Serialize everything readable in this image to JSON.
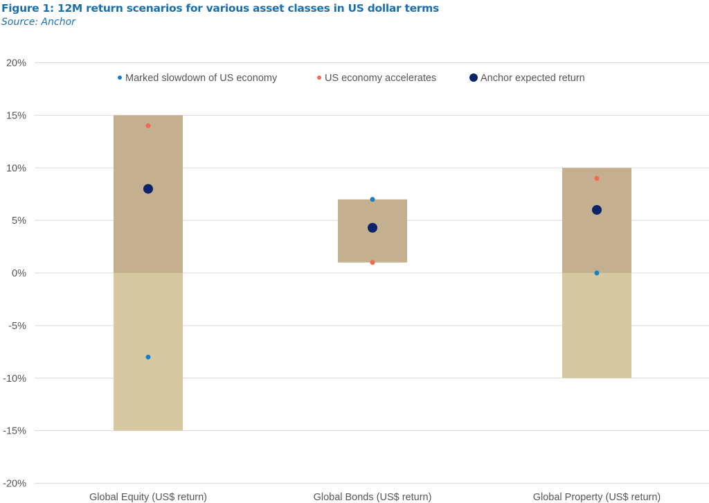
{
  "header": {
    "title": "Figure 1: 12M return scenarios for various asset classes in US dollar terms",
    "source": "Source: Anchor"
  },
  "chart_data": {
    "type": "floating-bar-with-points",
    "title": "Figure 1: 12M return scenarios for various asset classes in US dollar terms",
    "ylabel": "",
    "xlabel": "",
    "ylim": [
      -20,
      20
    ],
    "yticks": [
      20,
      15,
      10,
      5,
      0,
      -5,
      -10,
      -15,
      -20
    ],
    "ytick_labels": [
      "20%",
      "15%",
      "10%",
      "5%",
      "0%",
      "-5%",
      "-10%",
      "-15%",
      "-20%"
    ],
    "grid": true,
    "legend_position": "top-center",
    "categories": [
      "Global Equity (US$ return)",
      "Global Bonds (US$ return)",
      "Global Property (US$ return)"
    ],
    "ranges": [
      [
        -15,
        15
      ],
      [
        1,
        7
      ],
      [
        -10,
        10
      ]
    ],
    "series": [
      {
        "name": "Marked slowdown of US economy",
        "color": "#1a7fc1",
        "values": [
          -8,
          7,
          0
        ]
      },
      {
        "name": "US economy accelerates",
        "color": "#f06a50",
        "values": [
          14,
          1,
          9
        ]
      },
      {
        "name": "Anchor expected return",
        "color": "#0b2468",
        "values": [
          8,
          4.3,
          6
        ]
      }
    ],
    "colors": {
      "positive_range": "#c4b091",
      "negative_range": "#d6c9a1",
      "grid": "#d9d9d9"
    }
  }
}
